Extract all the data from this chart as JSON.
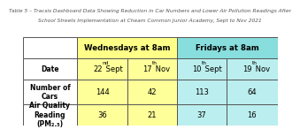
{
  "title_line1": "Table 5 – Tracsis Dashboard Data Showing Reduction in Car Numbers and Lower Air Pollution Readings After",
  "title_line2": "School Streets Implementation at Cheam Common Junior Academy, Sept to Nov 2021",
  "wed_header": "Wednesdays at 8am",
  "fri_header": "Fridays at 8am",
  "date_row": [
    [
      "22",
      "nd",
      " Sept"
    ],
    [
      "17",
      "th",
      " Nov"
    ],
    [
      "10",
      "th",
      " Sept"
    ],
    [
      "19",
      "th",
      " Nov"
    ]
  ],
  "cars_row": [
    "144",
    "42",
    "113",
    "64"
  ],
  "aq_row": [
    "36",
    "21",
    "37",
    "16"
  ],
  "row_label_0": "Date",
  "row_label_1": "Number of\nCars",
  "row_label_2": "Air Quality\nReading\n(PM₂.₅)",
  "wed_data_color": "#FFFF99",
  "fri_data_color": "#BBEEEE",
  "wed_header_color": "#FFFF88",
  "fri_header_color": "#88DDDD",
  "white": "#FFFFFF",
  "border": "#555555",
  "title_color": "#555555",
  "title_fs": 4.2,
  "header_fs": 6.2,
  "label_fs": 5.5,
  "data_fs": 6.0
}
